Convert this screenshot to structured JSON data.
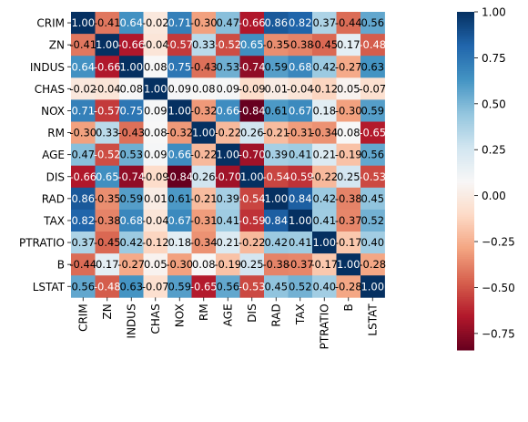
{
  "chart_data": {
    "type": "heatmap",
    "title": "",
    "xlabel": "",
    "ylabel": "",
    "labels": [
      "CRIM",
      "ZN",
      "INDUS",
      "CHAS",
      "NOX",
      "RM",
      "AGE",
      "DIS",
      "RAD",
      "TAX",
      "PTRATIO",
      "B",
      "LSTAT"
    ],
    "values": [
      [
        1.0,
        -0.41,
        0.64,
        -0.02,
        0.71,
        -0.3,
        0.47,
        -0.66,
        0.86,
        0.82,
        0.37,
        -0.44,
        0.56
      ],
      [
        -0.41,
        1.0,
        -0.66,
        -0.04,
        -0.57,
        0.33,
        -0.52,
        0.65,
        -0.35,
        -0.38,
        -0.45,
        0.17,
        -0.48
      ],
      [
        0.64,
        -0.66,
        1.0,
        0.08,
        0.75,
        -0.43,
        0.53,
        -0.74,
        0.59,
        0.68,
        0.42,
        -0.27,
        0.63
      ],
      [
        -0.02,
        -0.04,
        0.08,
        1.0,
        0.09,
        0.08,
        0.09,
        -0.09,
        0.01,
        -0.04,
        -0.12,
        0.05,
        -0.07
      ],
      [
        0.71,
        -0.57,
        0.75,
        0.09,
        1.0,
        -0.32,
        0.66,
        -0.84,
        0.61,
        0.67,
        0.18,
        -0.3,
        0.59
      ],
      [
        -0.3,
        0.33,
        -0.43,
        0.08,
        -0.32,
        1.0,
        -0.22,
        0.26,
        -0.21,
        -0.31,
        -0.34,
        0.08,
        -0.65
      ],
      [
        0.47,
        -0.52,
        0.53,
        0.09,
        0.66,
        -0.22,
        1.0,
        -0.7,
        0.39,
        0.41,
        0.21,
        -0.19,
        0.56
      ],
      [
        -0.66,
        0.65,
        -0.74,
        -0.09,
        -0.84,
        0.26,
        -0.7,
        1.0,
        -0.54,
        -0.59,
        -0.22,
        0.25,
        -0.53
      ],
      [
        0.86,
        -0.35,
        0.59,
        0.01,
        0.61,
        -0.21,
        0.39,
        -0.54,
        1.0,
        0.84,
        0.42,
        -0.38,
        0.45
      ],
      [
        0.82,
        -0.38,
        0.68,
        -0.04,
        0.67,
        -0.31,
        0.41,
        -0.59,
        0.84,
        1.0,
        0.41,
        -0.37,
        0.52
      ],
      [
        0.37,
        -0.45,
        0.42,
        -0.12,
        0.18,
        -0.34,
        0.21,
        -0.22,
        0.42,
        0.41,
        1.0,
        -0.17,
        0.4
      ],
      [
        -0.44,
        0.17,
        -0.27,
        0.05,
        -0.3,
        0.08,
        -0.19,
        0.25,
        -0.38,
        -0.37,
        -0.17,
        1.0,
        -0.28
      ],
      [
        0.56,
        -0.48,
        0.63,
        -0.07,
        0.59,
        -0.65,
        0.56,
        -0.53,
        0.45,
        0.52,
        0.4,
        -0.28,
        1.0
      ]
    ],
    "colormap": "RdBu",
    "vmin": -0.84,
    "vmax": 1.0,
    "colorbar_ticks": [
      1.0,
      0.75,
      0.5,
      0.25,
      0.0,
      -0.25,
      -0.5,
      -0.75
    ],
    "colorbar_tick_labels": [
      "1.00",
      "0.75",
      "0.50",
      "0.25",
      "0.00",
      "−0.25",
      "−0.50",
      "−0.75"
    ],
    "annotation_format": "2 decimals",
    "grid": false,
    "legend": "colorbar-right"
  }
}
